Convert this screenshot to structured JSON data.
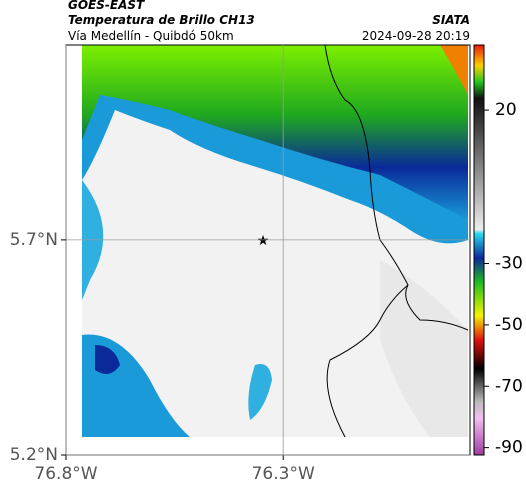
{
  "header": {
    "source": "GOES-EAST",
    "title": "Temperatura de Brillo CH13",
    "brand": "SIATA",
    "subtitle": "Vía Medellín - Quibdó 50km",
    "timestamp": "2024-09-28 20:19"
  },
  "map": {
    "xlim": [
      -76.8,
      -75.87
    ],
    "ylim": [
      5.2,
      6.153
    ],
    "xticks": [
      {
        "value": -76.8,
        "label": "76.8°W"
      },
      {
        "value": -76.3,
        "label": "76.3°W"
      }
    ],
    "yticks": [
      {
        "value": 5.7,
        "label": "5.7°N"
      },
      {
        "value": 5.2,
        "label": "5.2°N"
      }
    ],
    "colorbar": {
      "lim": [
        -92.4,
        41.2
      ],
      "ticks": [
        20,
        -30,
        -50,
        -70,
        -90
      ]
    }
  }
}
